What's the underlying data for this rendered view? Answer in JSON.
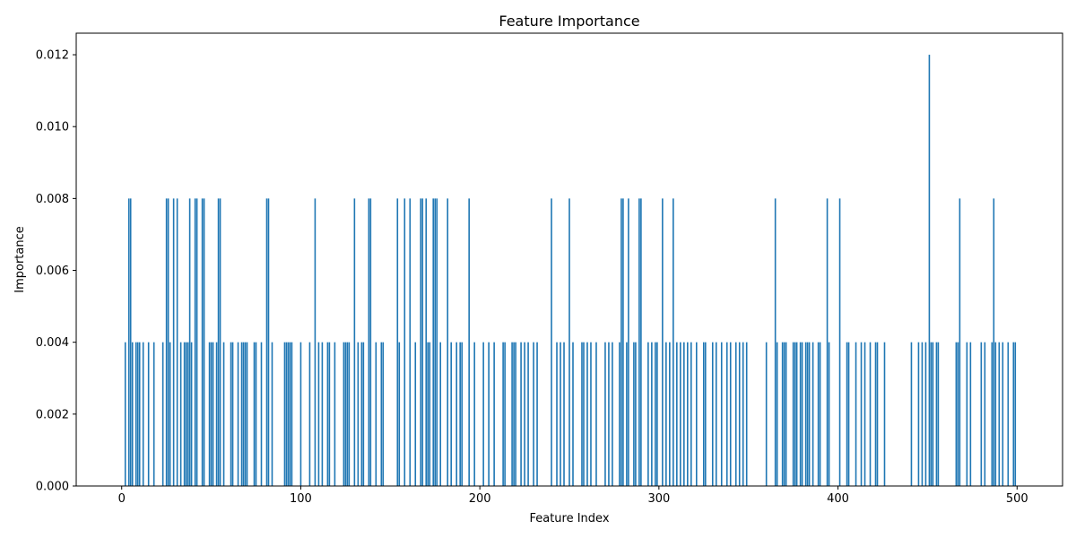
{
  "chart_data": {
    "type": "bar",
    "title": "Feature Importance",
    "xlabel": "Feature Index",
    "ylabel": "Importance",
    "xlim": [
      -25.4,
      525.4
    ],
    "ylim": [
      0,
      0.0126
    ],
    "xticks": [
      0,
      100,
      200,
      300,
      400,
      500
    ],
    "xtick_labels": [
      "0",
      "100",
      "200",
      "300",
      "400",
      "500"
    ],
    "yticks": [
      0,
      0.002,
      0.004,
      0.006,
      0.008,
      0.01,
      0.012
    ],
    "ytick_labels": [
      "0.000",
      "0.002",
      "0.004",
      "0.006",
      "0.008",
      "0.010",
      "0.012"
    ],
    "grid": false,
    "bar_color": "#1f77b4",
    "bar_width": 0.8,
    "points": [
      [
        2,
        0.004
      ],
      [
        4,
        0.008
      ],
      [
        5,
        0.008
      ],
      [
        6,
        0.004
      ],
      [
        8,
        0.004
      ],
      [
        9,
        0.004
      ],
      [
        10,
        0.004
      ],
      [
        12,
        0.004
      ],
      [
        15,
        0.004
      ],
      [
        18,
        0.004
      ],
      [
        23,
        0.004
      ],
      [
        25,
        0.008
      ],
      [
        26,
        0.008
      ],
      [
        27,
        0.004
      ],
      [
        29,
        0.008
      ],
      [
        31,
        0.008
      ],
      [
        33,
        0.004
      ],
      [
        35,
        0.004
      ],
      [
        36,
        0.004
      ],
      [
        37,
        0.004
      ],
      [
        38,
        0.008
      ],
      [
        39,
        0.004
      ],
      [
        41,
        0.008
      ],
      [
        42,
        0.008
      ],
      [
        45,
        0.008
      ],
      [
        46,
        0.008
      ],
      [
        49,
        0.004
      ],
      [
        50,
        0.004
      ],
      [
        51,
        0.004
      ],
      [
        53,
        0.004
      ],
      [
        54,
        0.008
      ],
      [
        55,
        0.008
      ],
      [
        57,
        0.004
      ],
      [
        61,
        0.004
      ],
      [
        62,
        0.004
      ],
      [
        65,
        0.004
      ],
      [
        67,
        0.004
      ],
      [
        68,
        0.004
      ],
      [
        69,
        0.004
      ],
      [
        70,
        0.004
      ],
      [
        74,
        0.004
      ],
      [
        75,
        0.004
      ],
      [
        78,
        0.004
      ],
      [
        81,
        0.008
      ],
      [
        82,
        0.008
      ],
      [
        84,
        0.004
      ],
      [
        91,
        0.004
      ],
      [
        92,
        0.004
      ],
      [
        93,
        0.004
      ],
      [
        94,
        0.004
      ],
      [
        95,
        0.004
      ],
      [
        100,
        0.004
      ],
      [
        105,
        0.004
      ],
      [
        108,
        0.008
      ],
      [
        110,
        0.004
      ],
      [
        112,
        0.004
      ],
      [
        115,
        0.004
      ],
      [
        116,
        0.004
      ],
      [
        119,
        0.004
      ],
      [
        124,
        0.004
      ],
      [
        125,
        0.004
      ],
      [
        126,
        0.004
      ],
      [
        127,
        0.004
      ],
      [
        130,
        0.008
      ],
      [
        132,
        0.004
      ],
      [
        134,
        0.004
      ],
      [
        135,
        0.004
      ],
      [
        138,
        0.008
      ],
      [
        139,
        0.008
      ],
      [
        142,
        0.004
      ],
      [
        145,
        0.004
      ],
      [
        146,
        0.004
      ],
      [
        154,
        0.008
      ],
      [
        155,
        0.004
      ],
      [
        158,
        0.008
      ],
      [
        161,
        0.008
      ],
      [
        164,
        0.004
      ],
      [
        167,
        0.008
      ],
      [
        168,
        0.008
      ],
      [
        170,
        0.008
      ],
      [
        171,
        0.004
      ],
      [
        172,
        0.004
      ],
      [
        174,
        0.008
      ],
      [
        175,
        0.008
      ],
      [
        176,
        0.008
      ],
      [
        178,
        0.004
      ],
      [
        182,
        0.008
      ],
      [
        184,
        0.004
      ],
      [
        187,
        0.004
      ],
      [
        189,
        0.004
      ],
      [
        190,
        0.004
      ],
      [
        194,
        0.008
      ],
      [
        197,
        0.004
      ],
      [
        202,
        0.004
      ],
      [
        205,
        0.004
      ],
      [
        208,
        0.004
      ],
      [
        213,
        0.004
      ],
      [
        214,
        0.004
      ],
      [
        218,
        0.004
      ],
      [
        219,
        0.004
      ],
      [
        220,
        0.004
      ],
      [
        223,
        0.004
      ],
      [
        225,
        0.004
      ],
      [
        227,
        0.004
      ],
      [
        230,
        0.004
      ],
      [
        232,
        0.004
      ],
      [
        240,
        0.008
      ],
      [
        243,
        0.004
      ],
      [
        245,
        0.004
      ],
      [
        247,
        0.004
      ],
      [
        250,
        0.008
      ],
      [
        252,
        0.004
      ],
      [
        257,
        0.004
      ],
      [
        258,
        0.004
      ],
      [
        260,
        0.004
      ],
      [
        262,
        0.004
      ],
      [
        265,
        0.004
      ],
      [
        270,
        0.004
      ],
      [
        272,
        0.004
      ],
      [
        274,
        0.004
      ],
      [
        278,
        0.004
      ],
      [
        279,
        0.008
      ],
      [
        280,
        0.008
      ],
      [
        282,
        0.004
      ],
      [
        283,
        0.008
      ],
      [
        286,
        0.004
      ],
      [
        287,
        0.004
      ],
      [
        289,
        0.008
      ],
      [
        290,
        0.008
      ],
      [
        294,
        0.004
      ],
      [
        296,
        0.004
      ],
      [
        298,
        0.004
      ],
      [
        299,
        0.004
      ],
      [
        302,
        0.008
      ],
      [
        304,
        0.004
      ],
      [
        306,
        0.004
      ],
      [
        308,
        0.008
      ],
      [
        310,
        0.004
      ],
      [
        312,
        0.004
      ],
      [
        314,
        0.004
      ],
      [
        316,
        0.004
      ],
      [
        318,
        0.004
      ],
      [
        321,
        0.004
      ],
      [
        325,
        0.004
      ],
      [
        326,
        0.004
      ],
      [
        330,
        0.004
      ],
      [
        332,
        0.004
      ],
      [
        335,
        0.004
      ],
      [
        338,
        0.004
      ],
      [
        340,
        0.004
      ],
      [
        343,
        0.004
      ],
      [
        345,
        0.004
      ],
      [
        347,
        0.004
      ],
      [
        349,
        0.004
      ],
      [
        360,
        0.004
      ],
      [
        365,
        0.008
      ],
      [
        366,
        0.004
      ],
      [
        369,
        0.004
      ],
      [
        370,
        0.004
      ],
      [
        371,
        0.004
      ],
      [
        375,
        0.004
      ],
      [
        376,
        0.004
      ],
      [
        377,
        0.004
      ],
      [
        379,
        0.004
      ],
      [
        380,
        0.004
      ],
      [
        382,
        0.004
      ],
      [
        383,
        0.004
      ],
      [
        384,
        0.004
      ],
      [
        386,
        0.004
      ],
      [
        389,
        0.004
      ],
      [
        390,
        0.004
      ],
      [
        394,
        0.008
      ],
      [
        395,
        0.004
      ],
      [
        401,
        0.008
      ],
      [
        405,
        0.004
      ],
      [
        406,
        0.004
      ],
      [
        410,
        0.004
      ],
      [
        413,
        0.004
      ],
      [
        415,
        0.004
      ],
      [
        418,
        0.004
      ],
      [
        421,
        0.004
      ],
      [
        422,
        0.004
      ],
      [
        426,
        0.004
      ],
      [
        441,
        0.004
      ],
      [
        445,
        0.004
      ],
      [
        447,
        0.004
      ],
      [
        449,
        0.004
      ],
      [
        451,
        0.012
      ],
      [
        452,
        0.004
      ],
      [
        453,
        0.004
      ],
      [
        455,
        0.004
      ],
      [
        456,
        0.004
      ],
      [
        466,
        0.004
      ],
      [
        467,
        0.004
      ],
      [
        468,
        0.008
      ],
      [
        472,
        0.004
      ],
      [
        474,
        0.004
      ],
      [
        480,
        0.004
      ],
      [
        482,
        0.004
      ],
      [
        486,
        0.004
      ],
      [
        487,
        0.008
      ],
      [
        488,
        0.004
      ],
      [
        490,
        0.004
      ],
      [
        492,
        0.004
      ],
      [
        495,
        0.004
      ],
      [
        498,
        0.004
      ],
      [
        499,
        0.004
      ]
    ]
  }
}
